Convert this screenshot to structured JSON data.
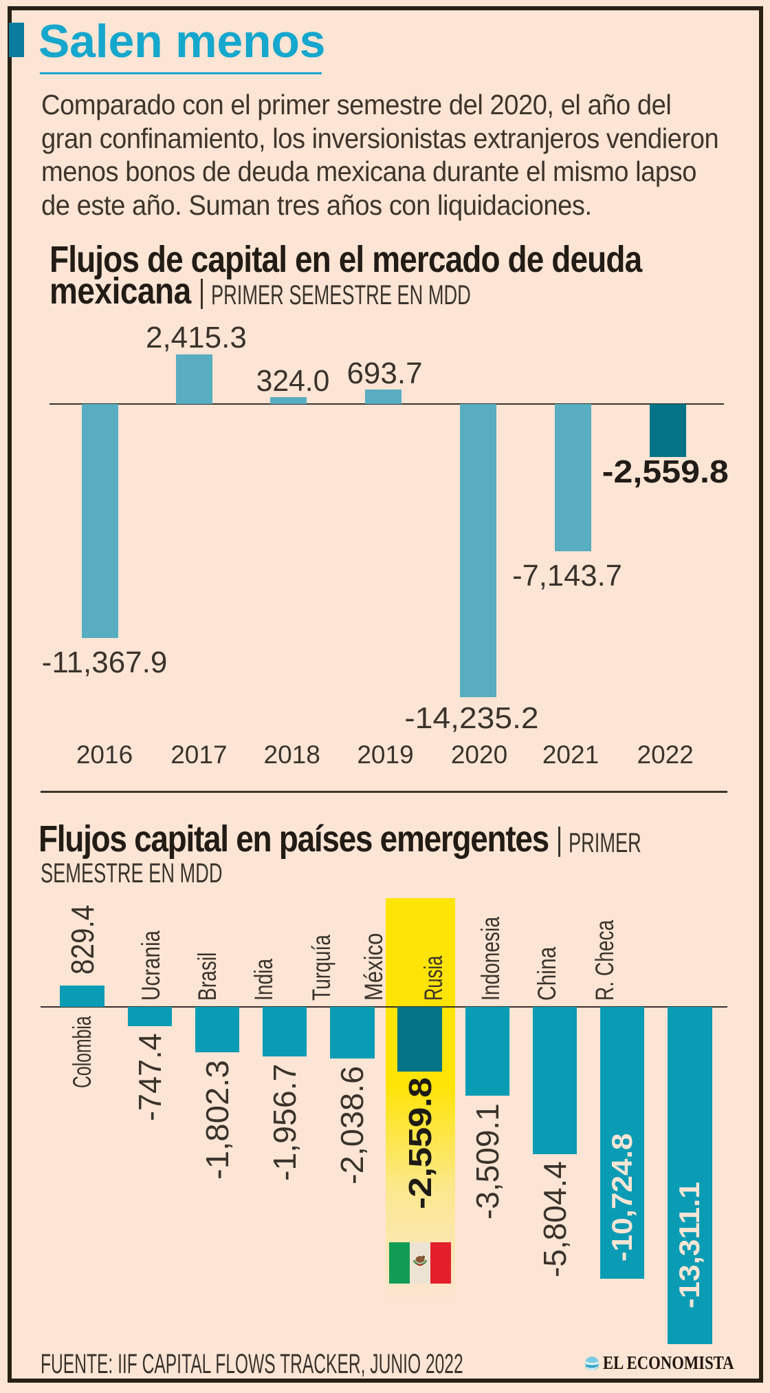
{
  "header": {
    "title": "Salen menos",
    "intro_lines": [
      "Comparado con el primer semestre del 2020, el año del",
      "gran confinamiento, los inversionistas extranjeros vendieron",
      "menos bonos de deuda mexicana durante el mismo lapso",
      "de este año. Suman tres años con liquidaciones."
    ]
  },
  "colors": {
    "background": "#fce5d4",
    "frame": "#2a2015",
    "accent_cyan": "#16a7cd",
    "chart1_bar": "#58adc0",
    "chart1_bar_highlight": "#047386",
    "chart2_bar": "#0b9cb5",
    "chart2_bar_highlight": "#047386",
    "highlight_band_yellow": "#ffe405",
    "text_dark": "#3a332c",
    "label_light": "#fce5d4"
  },
  "chart_data": [
    {
      "type": "bar",
      "title_bold": "Flujos de capital en el mercado de deuda mexicana",
      "title_bold_line1": "Flujos de capital en el mercado de deuda",
      "title_bold_line2": "mexicana",
      "subtitle": "PRIMER SEMESTRE EN MDD",
      "categories": [
        "2016",
        "2017",
        "2018",
        "2019",
        "2020",
        "2021",
        "2022"
      ],
      "values": [
        -11367.9,
        2415.3,
        324.0,
        693.7,
        -14235.2,
        -7143.7,
        -2559.8
      ],
      "labels": [
        "-11,367.9",
        "2,415.3",
        "324.0",
        "693.7",
        "-14,235.2",
        "-7,143.7",
        "-2,559.8"
      ],
      "highlight_index": 6,
      "ylim": [
        -14235.2,
        2415.3
      ],
      "grid": false,
      "legend": false
    },
    {
      "type": "bar",
      "title_bold": "Flujos capital en países emergentes",
      "subtitle": "PRIMER SEMESTRE EN MDD",
      "subtitle_line1": "PRIMER",
      "subtitle_line2": "SEMESTRE EN MDD",
      "categories": [
        "Colombia",
        "Ucrania",
        "Brasil",
        "India",
        "Turquía",
        "México",
        "Rusia",
        "Indonesia",
        "China",
        "R. Checa"
      ],
      "values": [
        829.4,
        -747.4,
        -1802.3,
        -1956.7,
        -2038.6,
        -2559.8,
        -3509.1,
        -5804.4,
        -10724.8,
        -13311.1
      ],
      "labels": [
        "829.4",
        "-747.4",
        "-1,802.3",
        "-1,956.7",
        "-2,038.6",
        "-2,559.8",
        "-3,509.1",
        "-5,804.4",
        "-10,724.8",
        "-13,311.1"
      ],
      "highlight_index": 5,
      "highlight_flag": "mexico-flag",
      "inside_label_indices": [
        8,
        9
      ],
      "ylim": [
        -13311.1,
        829.4
      ],
      "grid": false,
      "legend": false
    }
  ],
  "footer": {
    "source": "FUENTE: IIF CAPITAL FLOWS TRACKER, JUNIO 2022",
    "brand": "EL ECONOMISTA",
    "brand_icon": "el-economista-icon"
  }
}
